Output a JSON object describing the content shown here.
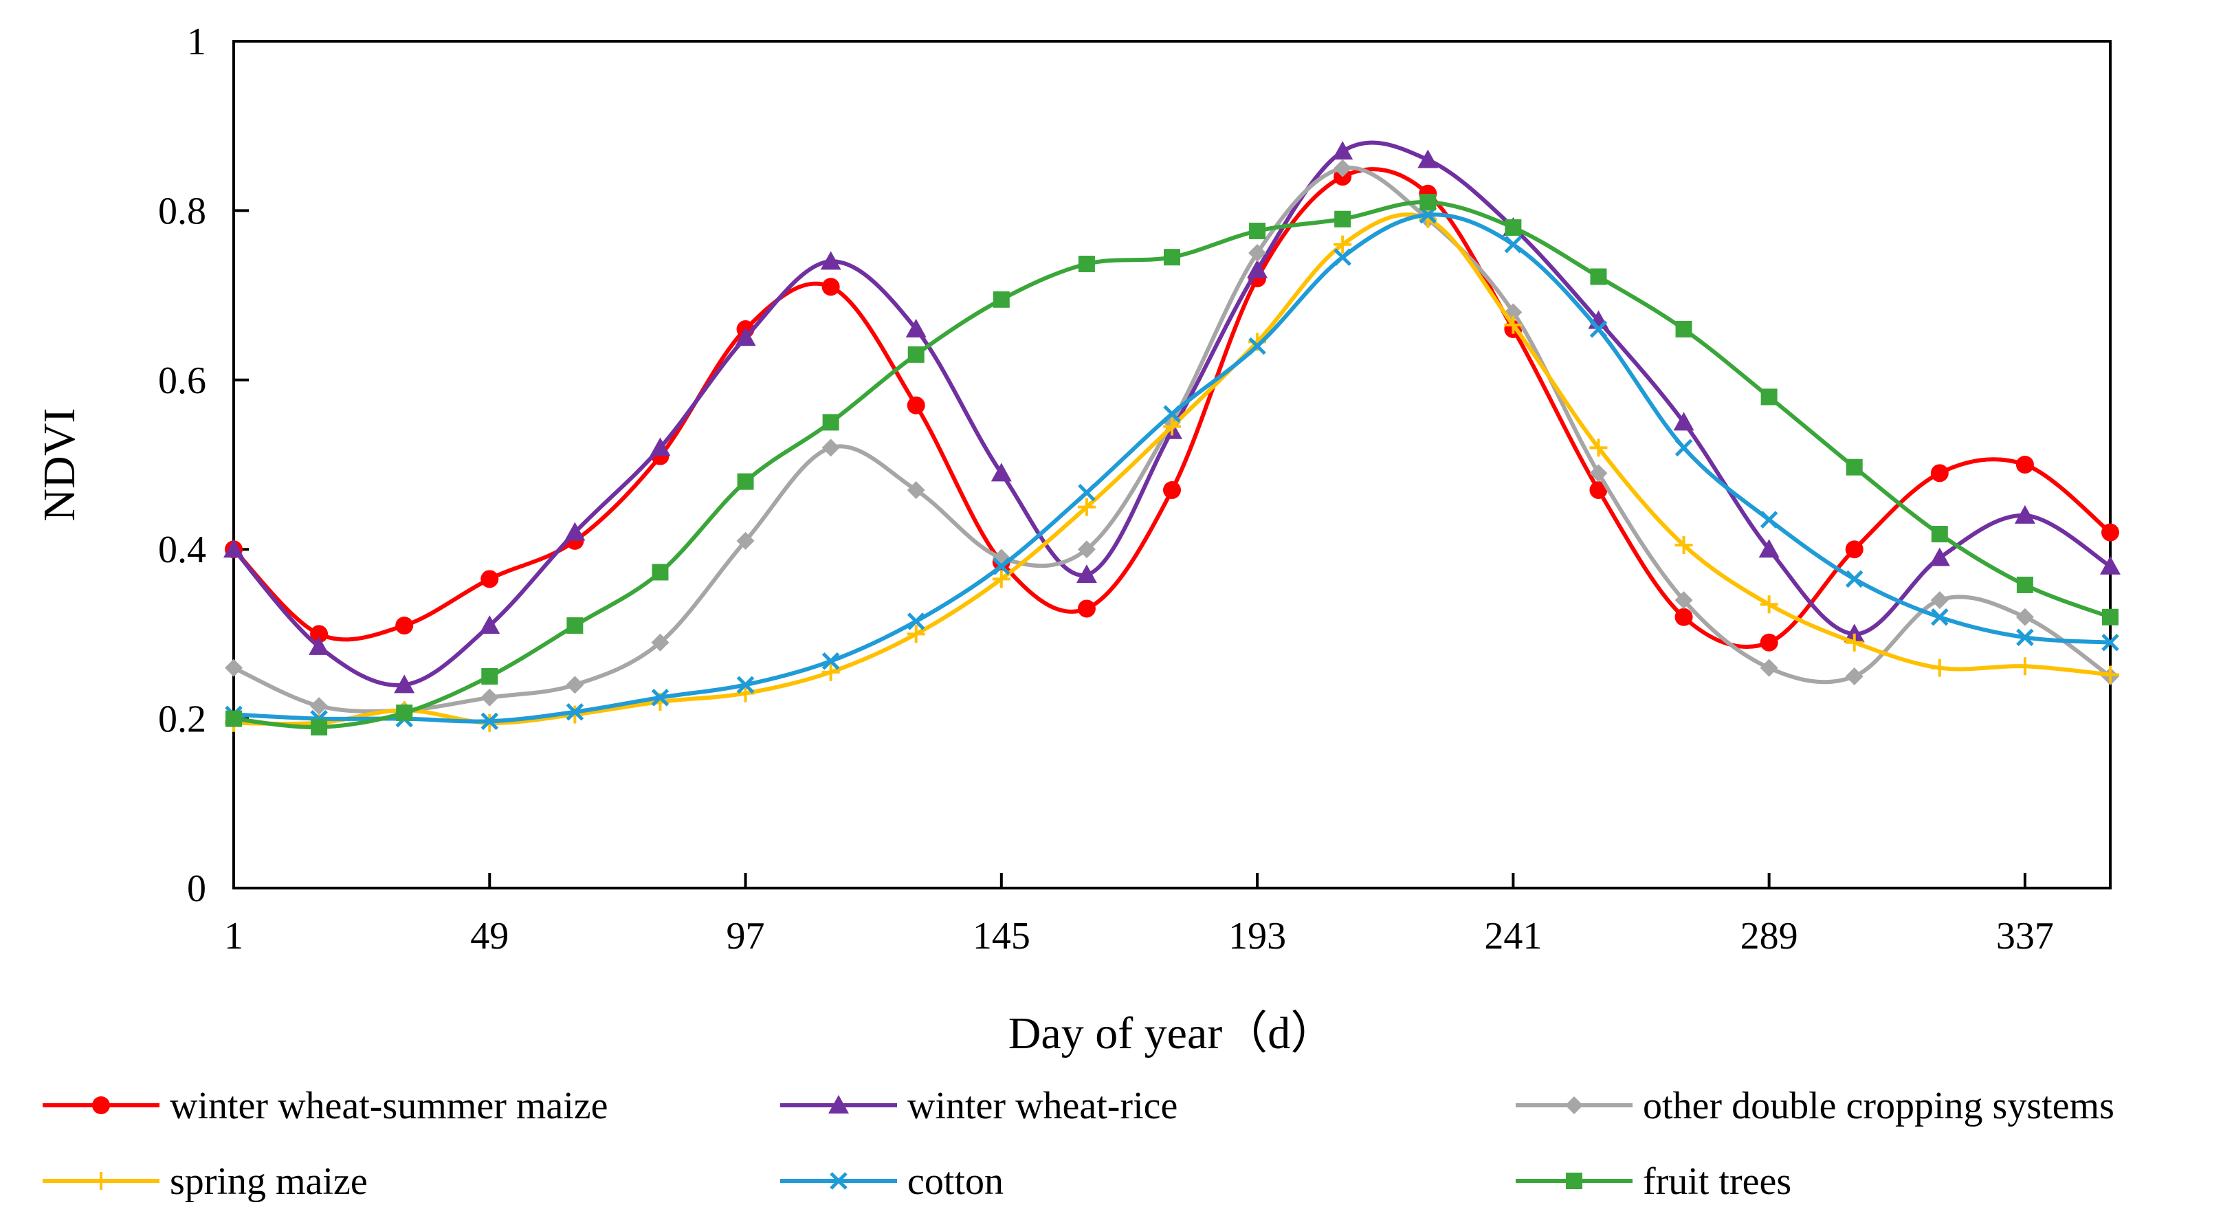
{
  "chart_data": {
    "type": "line",
    "title": "",
    "xlabel": "Day of year（d）",
    "ylabel": "NDVI",
    "xlim": [
      1,
      353
    ],
    "ylim": [
      0,
      1
    ],
    "x": [
      1,
      17,
      33,
      49,
      65,
      81,
      97,
      113,
      129,
      145,
      161,
      177,
      193,
      209,
      225,
      241,
      257,
      273,
      289,
      305,
      321,
      337,
      353
    ],
    "x_ticks": [
      1,
      49,
      97,
      145,
      193,
      241,
      289,
      337
    ],
    "x_tick_labels": [
      "1",
      "49",
      "97",
      "145",
      "193",
      "241",
      "289",
      "337"
    ],
    "y_ticks": [
      0,
      0.2,
      0.4,
      0.6,
      0.8,
      1
    ],
    "y_tick_labels": [
      "0",
      "0.2",
      "0.4",
      "0.6",
      "0.8",
      "1"
    ],
    "grid": false,
    "legend_position": "bottom",
    "series": [
      {
        "name": "winter wheat-summer maize",
        "color": "#ff0000",
        "marker": "circle",
        "values": [
          0.4,
          0.3,
          0.31,
          0.365,
          0.41,
          0.51,
          0.66,
          0.71,
          0.57,
          0.385,
          0.33,
          0.47,
          0.72,
          0.84,
          0.82,
          0.66,
          0.47,
          0.32,
          0.29,
          0.4,
          0.49,
          0.5,
          0.42
        ]
      },
      {
        "name": "winter wheat-rice",
        "color": "#7030a0",
        "marker": "triangle",
        "values": [
          0.4,
          0.285,
          0.24,
          0.31,
          0.42,
          0.52,
          0.65,
          0.74,
          0.66,
          0.49,
          0.37,
          0.54,
          0.73,
          0.87,
          0.86,
          0.78,
          0.67,
          0.55,
          0.4,
          0.3,
          0.39,
          0.44,
          0.38
        ]
      },
      {
        "name": "other double cropping systems",
        "color": "#a6a6a6",
        "marker": "diamond",
        "values": [
          0.26,
          0.215,
          0.21,
          0.225,
          0.24,
          0.29,
          0.41,
          0.52,
          0.47,
          0.39,
          0.4,
          0.55,
          0.75,
          0.85,
          0.79,
          0.68,
          0.49,
          0.34,
          0.26,
          0.25,
          0.34,
          0.32,
          0.25
        ]
      },
      {
        "name": "spring maize",
        "color": "#ffc000",
        "marker": "plus",
        "values": [
          0.195,
          0.195,
          0.21,
          0.195,
          0.205,
          0.22,
          0.23,
          0.255,
          0.3,
          0.365,
          0.45,
          0.545,
          0.645,
          0.76,
          0.79,
          0.665,
          0.52,
          0.405,
          0.335,
          0.29,
          0.26,
          0.262,
          0.252
        ]
      },
      {
        "name": "cotton",
        "color": "#1f9bd7",
        "marker": "x",
        "values": [
          0.205,
          0.2,
          0.2,
          0.197,
          0.208,
          0.225,
          0.24,
          0.268,
          0.315,
          0.38,
          0.467,
          0.56,
          0.64,
          0.745,
          0.795,
          0.76,
          0.66,
          0.52,
          0.435,
          0.365,
          0.32,
          0.296,
          0.29
        ]
      },
      {
        "name": "fruit trees",
        "color": "#3aa63a",
        "marker": "square",
        "values": [
          0.2,
          0.19,
          0.207,
          0.25,
          0.31,
          0.373,
          0.48,
          0.55,
          0.63,
          0.695,
          0.737,
          0.745,
          0.776,
          0.79,
          0.81,
          0.78,
          0.722,
          0.66,
          0.58,
          0.497,
          0.418,
          0.358,
          0.32
        ]
      }
    ]
  }
}
